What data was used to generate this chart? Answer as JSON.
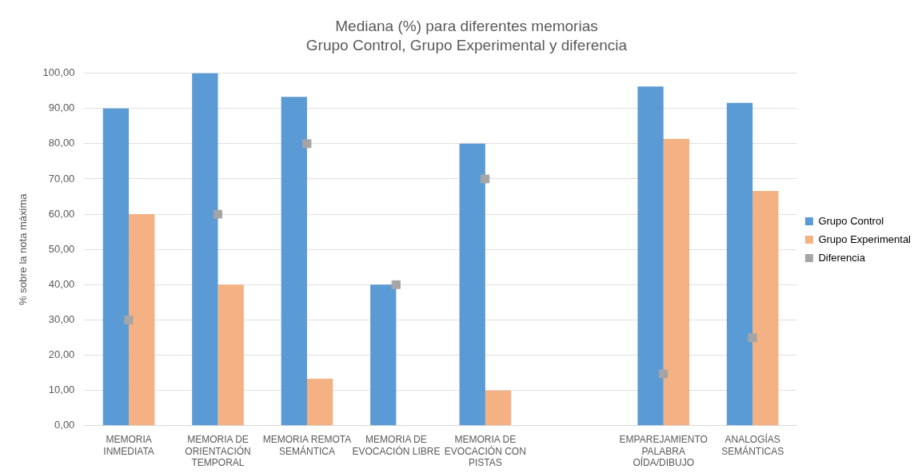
{
  "chart_data": {
    "type": "bar",
    "title": "Mediana (%) para diferentes memorias",
    "subtitle": "Grupo Control, Grupo Experimental y diferencia",
    "ylabel": "% sobre la nota máxima",
    "categories": [
      "MEMORIA INMEDIATA",
      "MEMORIA DE ORIENTACIÓN TEMPORAL",
      "MEMORIA REMOTA SEMÁNTICA",
      "MEMORIA DE EVOCACIÓN LIBRE",
      "MEMORIA DE EVOCACIÓN CON PISTAS",
      null,
      "EMPAREJAMIENTO PALABRA OÍDA/DIBUJO",
      "ANALOGÍAS SEMÁNTICAS"
    ],
    "series": [
      {
        "name": "Grupo Control",
        "color": "#5b9bd5",
        "values": [
          90,
          100,
          93.3,
          40,
          80,
          null,
          96.2,
          91.6
        ]
      },
      {
        "name": "Grupo Experimental",
        "color": "#f4b183",
        "values": [
          60,
          40,
          13.3,
          0,
          10,
          null,
          81.4,
          66.6
        ]
      },
      {
        "name": "Diferencia",
        "type": "scatter",
        "marker": "square",
        "color": "#a5a5a5",
        "values": [
          30,
          60,
          80,
          40,
          70,
          null,
          14.7,
          25
        ]
      }
    ],
    "ylim": [
      0,
      100
    ],
    "yticks": [
      {
        "value": 0,
        "label": "0,00"
      },
      {
        "value": 10,
        "label": "10,00"
      },
      {
        "value": 20,
        "label": "20,00"
      },
      {
        "value": 30,
        "label": "30,00"
      },
      {
        "value": 40,
        "label": "40,00"
      },
      {
        "value": 50,
        "label": "50,00"
      },
      {
        "value": 60,
        "label": "60,00"
      },
      {
        "value": 70,
        "label": "70,00"
      },
      {
        "value": 80,
        "label": "80,00"
      },
      {
        "value": 90,
        "label": "90,00"
      },
      {
        "value": 100,
        "label": "100,00"
      }
    ],
    "grid": "y",
    "legend": "right"
  }
}
